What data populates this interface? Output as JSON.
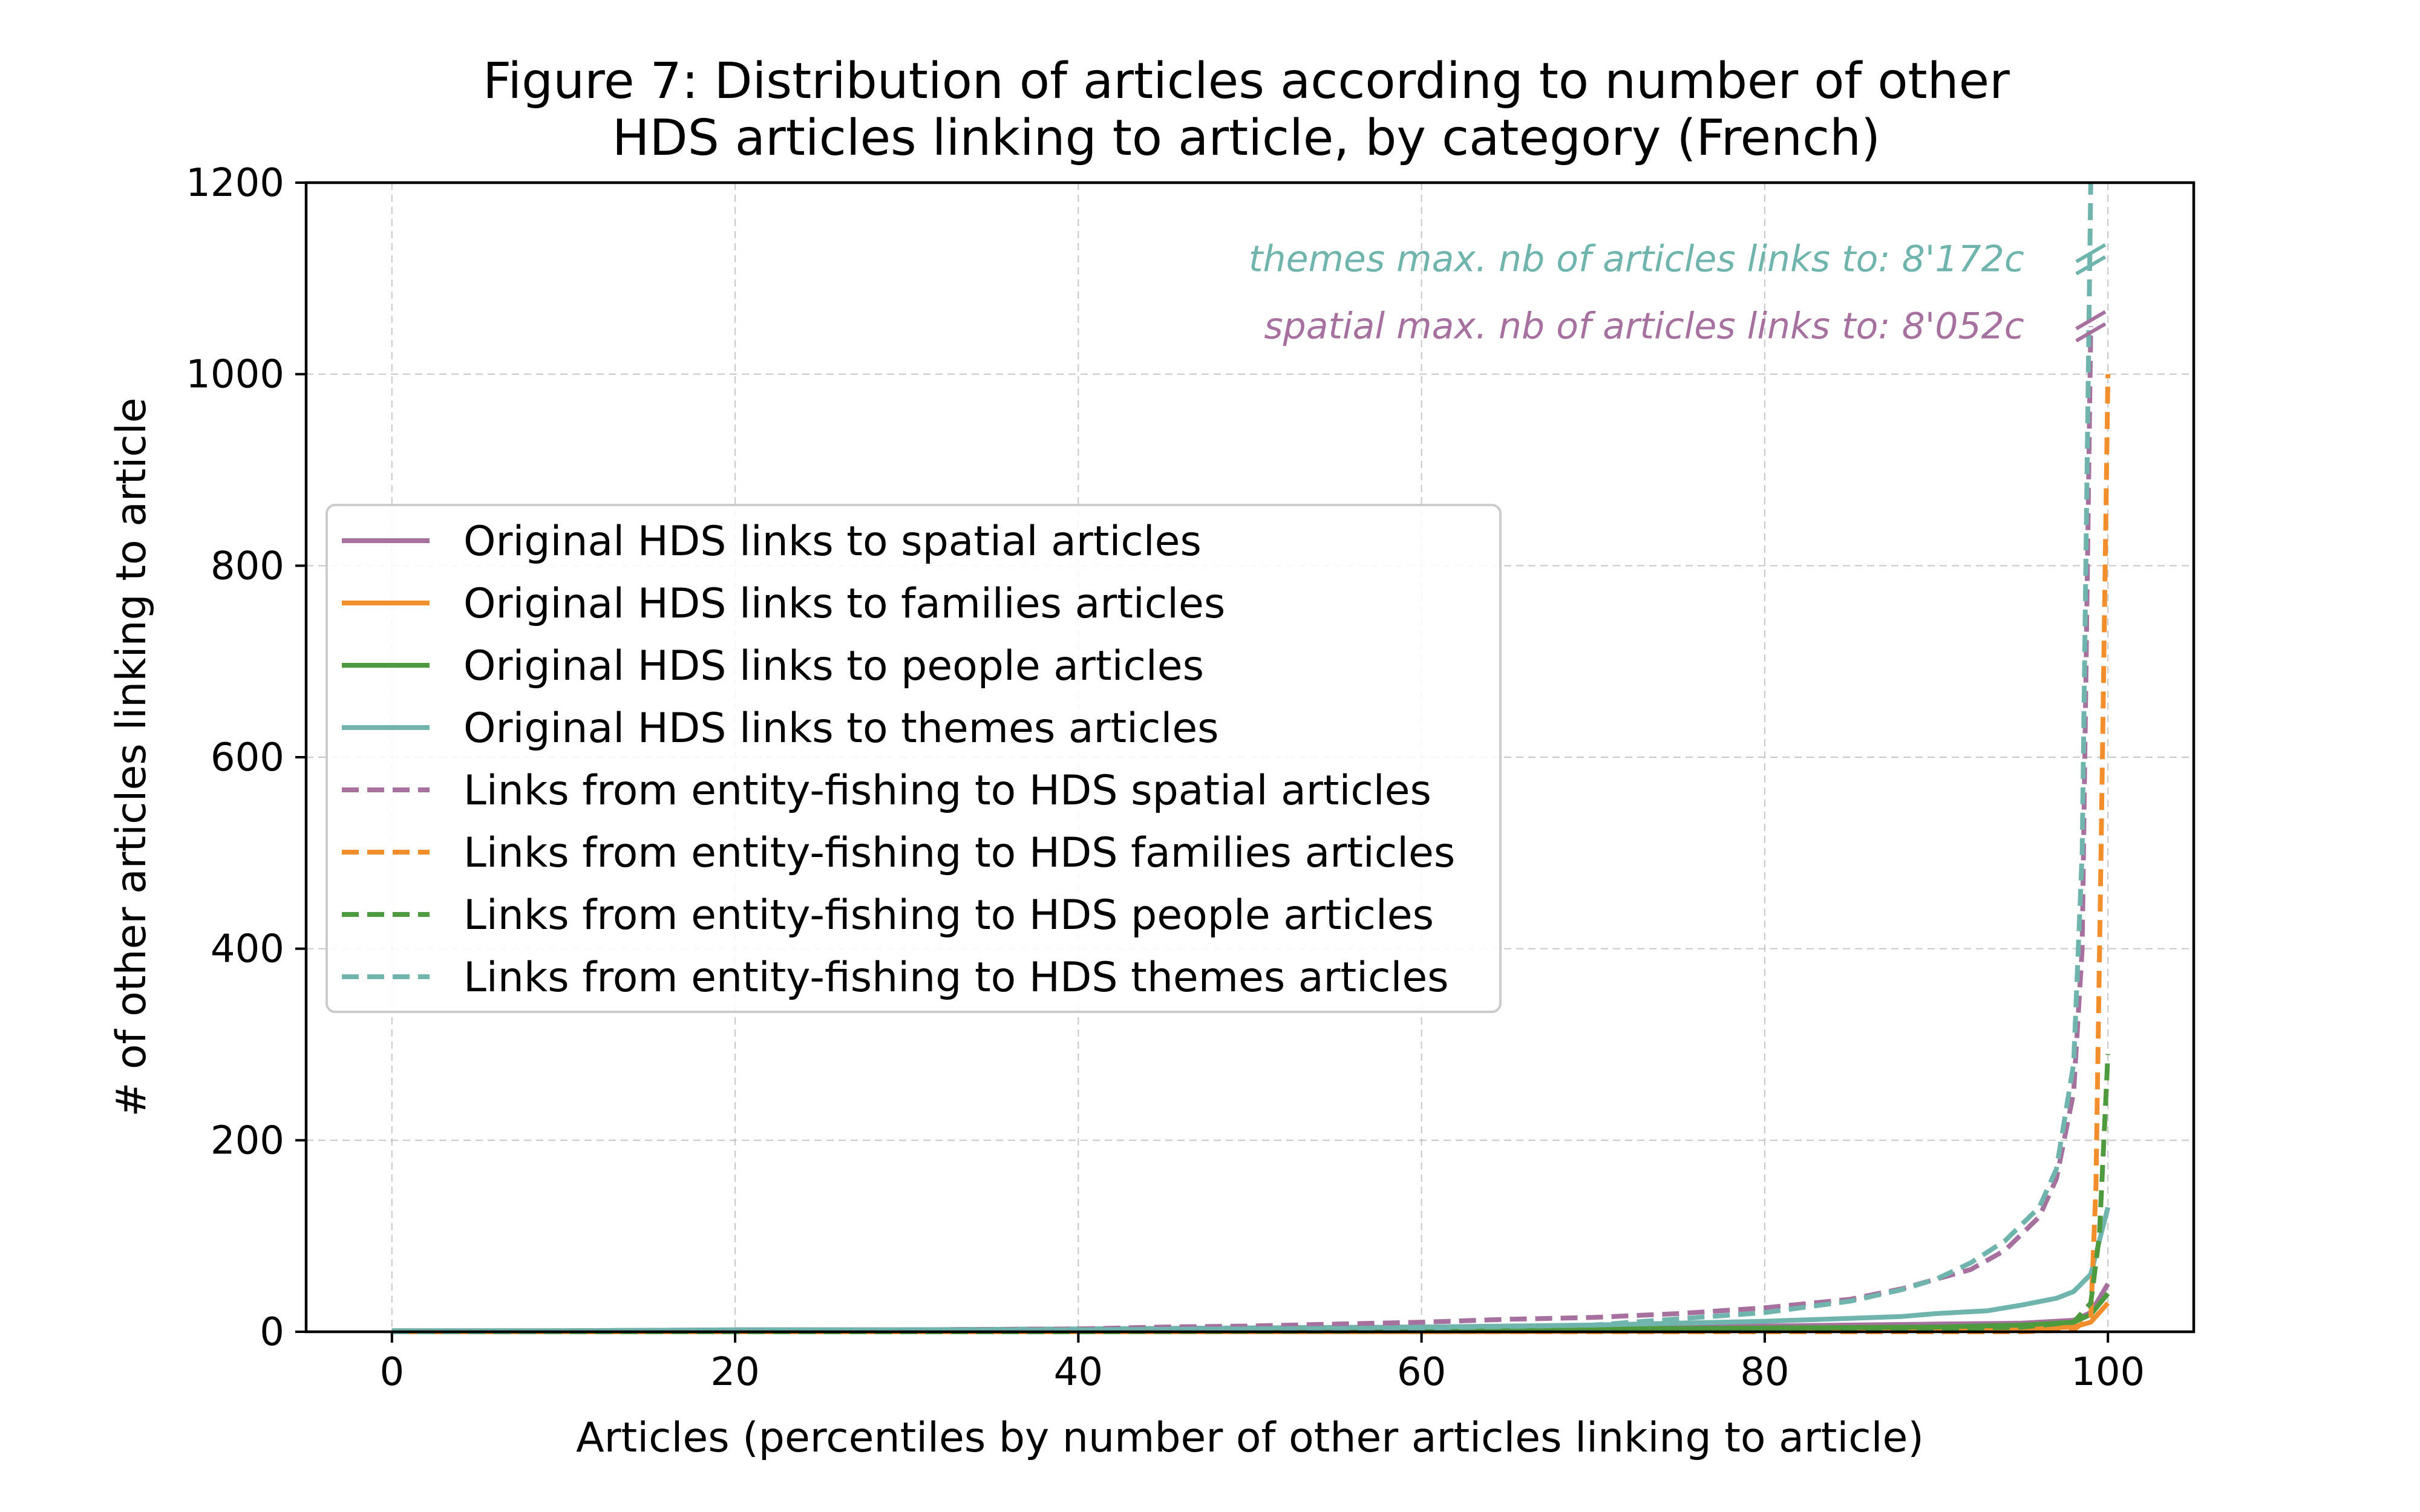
{
  "chart_data": {
    "type": "line",
    "title_lines": [
      "Figure 7: Distribution of articles according to number of other",
      "HDS articles linking to article, by category (French)"
    ],
    "xlabel": "Articles (percentiles by number of other articles linking to article)",
    "ylabel": "# of other articles linking to article",
    "xlim": [
      -5,
      105
    ],
    "ylim": [
      0,
      1200
    ],
    "xticks": [
      0,
      20,
      40,
      60,
      80,
      100
    ],
    "yticks": [
      0,
      200,
      400,
      600,
      800,
      1000,
      1200
    ],
    "grid": true,
    "legend_position": "center-left",
    "colors": {
      "spatial": "#a6719f",
      "families": "#f28e2b",
      "people": "#4e9a3f",
      "themes": "#6fb4ad"
    },
    "annotations": [
      {
        "text": "themes max. nb of articles links to: 8'172c",
        "color": "#6fb4ad",
        "x": 99,
        "y": 1120
      },
      {
        "text": "spatial max. nb of articles links to: 8'052c",
        "color": "#a6719f",
        "x": 99,
        "y": 1050
      }
    ],
    "series": [
      {
        "name": "Original HDS links to spatial articles",
        "style": "solid",
        "color_key": "spatial",
        "points": [
          [
            0,
            1
          ],
          [
            10,
            1
          ],
          [
            20,
            2
          ],
          [
            30,
            2
          ],
          [
            40,
            3
          ],
          [
            50,
            4
          ],
          [
            60,
            5
          ],
          [
            70,
            5
          ],
          [
            80,
            6
          ],
          [
            85,
            7
          ],
          [
            90,
            8
          ],
          [
            95,
            9
          ],
          [
            98,
            12
          ],
          [
            99,
            20
          ],
          [
            100,
            50
          ]
        ]
      },
      {
        "name": "Original HDS links to families articles",
        "style": "solid",
        "color_key": "families",
        "points": [
          [
            0,
            0
          ],
          [
            20,
            0
          ],
          [
            40,
            0
          ],
          [
            60,
            0
          ],
          [
            80,
            1
          ],
          [
            90,
            2
          ],
          [
            95,
            3
          ],
          [
            98,
            5
          ],
          [
            99,
            10
          ],
          [
            100,
            30
          ]
        ]
      },
      {
        "name": "Original HDS links to people articles",
        "style": "solid",
        "color_key": "people",
        "points": [
          [
            0,
            1
          ],
          [
            20,
            1
          ],
          [
            40,
            2
          ],
          [
            60,
            2
          ],
          [
            80,
            4
          ],
          [
            90,
            5
          ],
          [
            95,
            7
          ],
          [
            98,
            10
          ],
          [
            99,
            18
          ],
          [
            100,
            40
          ]
        ]
      },
      {
        "name": "Original HDS links to themes articles",
        "style": "solid",
        "color_key": "themes",
        "points": [
          [
            0,
            1
          ],
          [
            10,
            1
          ],
          [
            20,
            2
          ],
          [
            30,
            2
          ],
          [
            40,
            3
          ],
          [
            50,
            4
          ],
          [
            60,
            5
          ],
          [
            70,
            7
          ],
          [
            80,
            11
          ],
          [
            85,
            14
          ],
          [
            88,
            16
          ],
          [
            90,
            19
          ],
          [
            93,
            22
          ],
          [
            95,
            28
          ],
          [
            97,
            35
          ],
          [
            98,
            42
          ],
          [
            99,
            60
          ],
          [
            100,
            130
          ]
        ]
      },
      {
        "name": "Links from entity-fishing to HDS spatial articles",
        "style": "dashed",
        "color_key": "spatial",
        "points": [
          [
            0,
            0
          ],
          [
            10,
            1
          ],
          [
            20,
            1
          ],
          [
            30,
            2
          ],
          [
            40,
            3
          ],
          [
            45,
            5
          ],
          [
            50,
            6
          ],
          [
            55,
            8
          ],
          [
            60,
            10
          ],
          [
            65,
            13
          ],
          [
            70,
            15
          ],
          [
            75,
            19
          ],
          [
            80,
            25
          ],
          [
            85,
            34
          ],
          [
            88,
            45
          ],
          [
            90,
            55
          ],
          [
            92,
            65
          ],
          [
            94,
            85
          ],
          [
            96,
            120
          ],
          [
            97,
            160
          ],
          [
            98,
            250
          ],
          [
            98.5,
            400
          ],
          [
            99,
            1050
          ]
        ]
      },
      {
        "name": "Links from entity-fishing to HDS families articles",
        "style": "dashed",
        "color_key": "families",
        "points": [
          [
            0,
            0
          ],
          [
            40,
            0
          ],
          [
            60,
            0
          ],
          [
            80,
            0
          ],
          [
            90,
            0
          ],
          [
            95,
            0
          ],
          [
            98,
            2
          ],
          [
            99,
            15
          ],
          [
            99.3,
            150
          ],
          [
            99.6,
            500
          ],
          [
            100,
            1000
          ]
        ]
      },
      {
        "name": "Links from entity-fishing to HDS people articles",
        "style": "dashed",
        "color_key": "people",
        "points": [
          [
            0,
            0
          ],
          [
            40,
            0
          ],
          [
            60,
            1
          ],
          [
            80,
            2
          ],
          [
            90,
            3
          ],
          [
            95,
            5
          ],
          [
            98,
            10
          ],
          [
            99,
            30
          ],
          [
            99.5,
            100
          ],
          [
            100,
            290
          ]
        ]
      },
      {
        "name": "Links from entity-fishing to HDS themes articles",
        "style": "dashed",
        "color_key": "themes",
        "points": [
          [
            0,
            0
          ],
          [
            10,
            1
          ],
          [
            20,
            1
          ],
          [
            30,
            2
          ],
          [
            40,
            2
          ],
          [
            50,
            3
          ],
          [
            60,
            4
          ],
          [
            70,
            7
          ],
          [
            80,
            20
          ],
          [
            85,
            32
          ],
          [
            88,
            44
          ],
          [
            90,
            55
          ],
          [
            92,
            72
          ],
          [
            94,
            95
          ],
          [
            96,
            130
          ],
          [
            97,
            170
          ],
          [
            98,
            280
          ],
          [
            98.5,
            500
          ],
          [
            99,
            1200
          ]
        ]
      }
    ]
  }
}
